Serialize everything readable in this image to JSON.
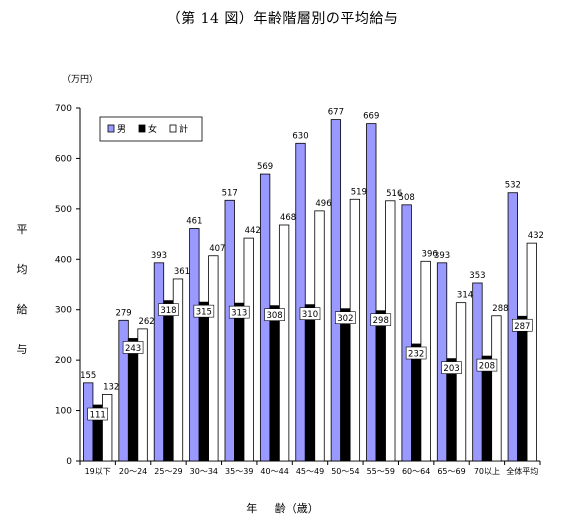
{
  "title": "（第 14 図）年齢階層別の平均給与",
  "unit": "（万円）",
  "ylabel_chars": [
    "平",
    "均",
    "給",
    "与"
  ],
  "xlabel": "年 齢（歳）",
  "colors": {
    "male": "#9999ff",
    "female": "#000000",
    "total": "#ffffff",
    "stroke": "#000000"
  },
  "chart_data": {
    "type": "bar",
    "title": "（第 14 図）年齢階層別の平均給与",
    "xlabel": "年 齢（歳）",
    "ylabel": "平均給与",
    "unit": "（万円）",
    "ylim": [
      0,
      700
    ],
    "yticks": [
      0,
      100,
      200,
      300,
      400,
      500,
      600,
      700
    ],
    "grid": false,
    "legend_position": "top-left",
    "categories": [
      "19以下",
      "20～24",
      "25～29",
      "30～34",
      "35～39",
      "40～44",
      "45～49",
      "50～54",
      "55～59",
      "60～64",
      "65～69",
      "70以上",
      "全体平均"
    ],
    "series": [
      {
        "name": "男",
        "values": [
          155,
          279,
          393,
          461,
          517,
          569,
          630,
          677,
          669,
          508,
          393,
          353,
          532
        ]
      },
      {
        "name": "女",
        "values": [
          111,
          243,
          318,
          315,
          313,
          308,
          310,
          302,
          298,
          232,
          203,
          208,
          287
        ]
      },
      {
        "name": "計",
        "values": [
          132,
          262,
          361,
          407,
          442,
          468,
          496,
          519,
          516,
          396,
          314,
          288,
          432
        ]
      }
    ]
  }
}
